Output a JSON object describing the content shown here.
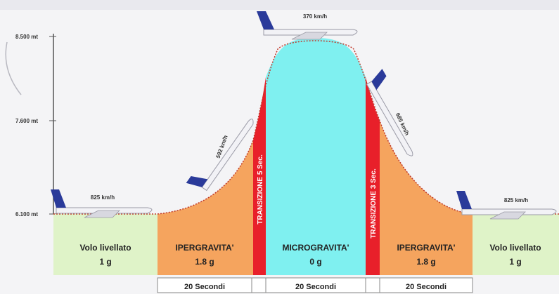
{
  "altitudes": {
    "top": "8.500 mt",
    "mid": "7.600 mt",
    "low": "6.100 mt"
  },
  "speeds": {
    "left_level": "825 km/h",
    "climb": "592 km/h",
    "apex": "370 km/h",
    "descent": "685 km/h",
    "right_level": "825 km/h"
  },
  "phases": {
    "left_level": {
      "name": "Volo livellato",
      "value": "1 g"
    },
    "left_hyper": {
      "name": "IPERGRAVITA'",
      "value": "1.8 g"
    },
    "left_transition": {
      "name": "TRANSIZIONE 5 Sec."
    },
    "micro": {
      "name": "MICROGRAVITA'",
      "value": "0 g"
    },
    "right_transition": {
      "name": "TRANSIZIONE 3 Sec."
    },
    "right_hyper": {
      "name": "IPERGRAVITA'",
      "value": "1.8 g"
    },
    "right_level": {
      "name": "Volo livellato",
      "value": "1 g"
    }
  },
  "durations": {
    "left": "20 Secondi",
    "center": "20 Secondi",
    "right": "20 Secondi"
  },
  "colors": {
    "level": "#dff3c8",
    "hyper": "#f5a45e",
    "transition": "#e8202a",
    "micro": "#7ff0f0",
    "trajectory": "#c0392b",
    "plane_tail": "#2a3a9a"
  }
}
